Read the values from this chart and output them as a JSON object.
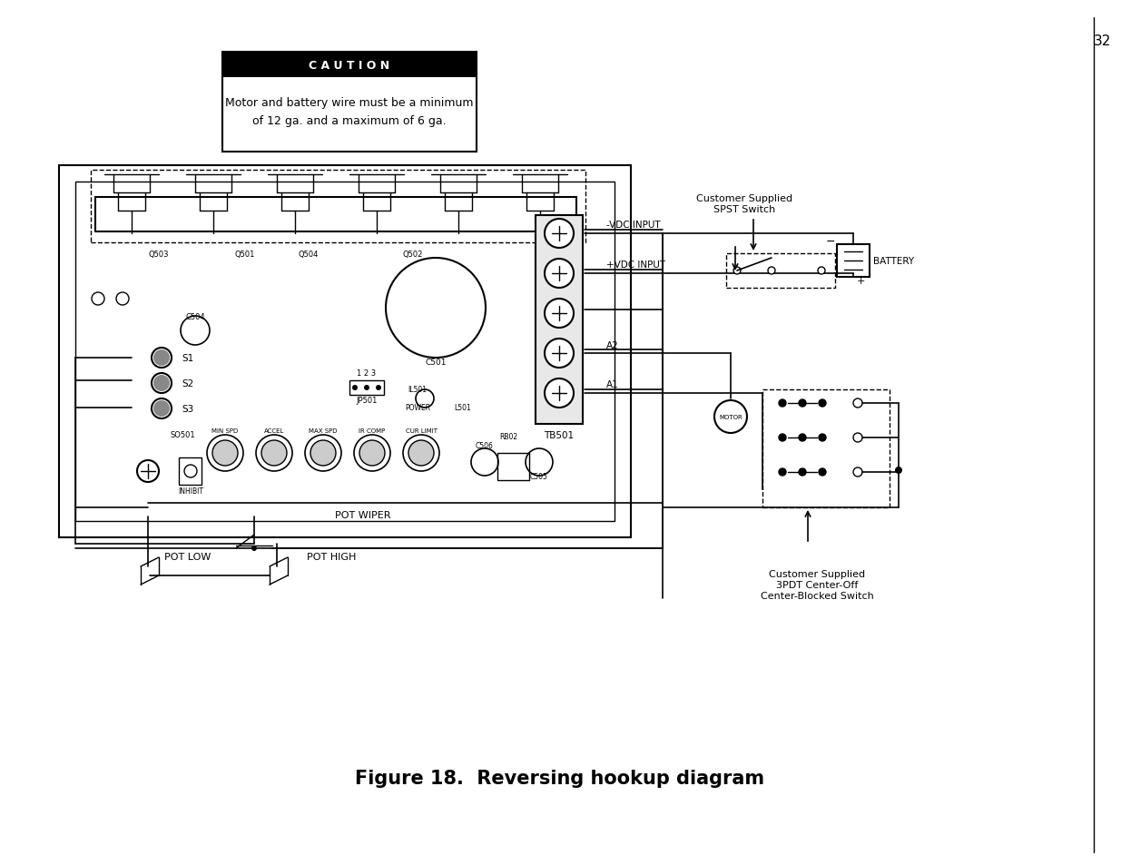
{
  "title": "Figure 18.  Reversing hookup diagram",
  "caution_title": "C A U T I O N",
  "caution_text1": "Motor and battery wire must be a minimum",
  "caution_text2": "of 12 ga. and a maximum of 6 ga.",
  "page_number": "32",
  "label_spst": "Customer Supplied\nSPST Switch",
  "label_3pdt": "Customer Supplied\n3PDT Center-Off\nCenter-Blocked Switch",
  "label_battery": "BATTERY",
  "label_vdc_neg": "-VDC INPUT",
  "label_vdc_pos": "+VDC INPUT",
  "label_a2": "A2",
  "label_a1": "A1",
  "label_tb501": "TB501",
  "label_pot_wiper": "POT WIPER",
  "label_pot_low": "POT LOW",
  "label_pot_high": "POT HIGH",
  "label_motor": "MOTOR",
  "label_q503": "Q503",
  "label_q501": "Q501",
  "label_q504": "Q504",
  "label_q502": "Q502",
  "label_c501": "C501",
  "label_c504": "C504",
  "label_s1": "S1",
  "label_s2": "S2",
  "label_s3": "S3",
  "label_so501": "SO501",
  "label_jp501": "JP501",
  "label_123": "1 2 3",
  "label_il501": "IL501",
  "label_power": "POWER",
  "label_l501": "L501",
  "label_inhibit": "INHIBIT",
  "label_min_spd": "MIN SPD",
  "label_accel": "ACCEL",
  "label_max_spd": "MAX SPD",
  "label_ir_comp": "IR COMP",
  "label_cur_limit": "CUR LIMIT",
  "label_c506": "C506",
  "label_c505": "C505",
  "label_rb02": "RB02"
}
